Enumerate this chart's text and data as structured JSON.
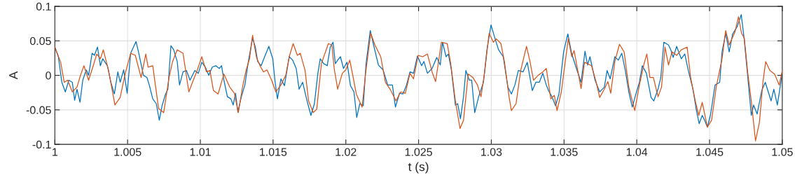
{
  "chart_data": {
    "type": "line",
    "xlabel": "t (s)",
    "ylabel": "A",
    "xlim": [
      1,
      1.05
    ],
    "xticks": [
      1,
      1.005,
      1.01,
      1.015,
      1.02,
      1.025,
      1.03,
      1.035,
      1.04,
      1.045,
      1.05
    ],
    "ylim": [
      -0.1,
      0.1
    ],
    "yticks": [
      -0.1,
      -0.05,
      0,
      0.05,
      0.1
    ],
    "grid": true,
    "line_style": "solid",
    "series": [
      {
        "color": "#0072bd",
        "x": [
          1.0,
          1.00024,
          1.00048,
          1.00072,
          1.00096,
          1.0012,
          1.00136,
          1.00152,
          1.00173,
          1.00192,
          1.00216,
          1.00232,
          1.00256,
          1.00272,
          1.00293,
          1.00313,
          1.00329,
          1.00361,
          1.00385,
          1.00409,
          1.00433,
          1.00449,
          1.00473,
          1.00497,
          1.00521,
          1.00558,
          1.00577,
          1.00609,
          1.00633,
          1.00649,
          1.00673,
          1.00697,
          1.00718,
          1.00737,
          1.00761,
          1.00777,
          1.00798,
          1.00817,
          1.00841,
          1.00857,
          1.00881,
          1.00905,
          1.00929,
          1.00962,
          1.00986,
          1.0101,
          1.01034,
          1.01058,
          1.01082,
          1.01106,
          1.0113,
          1.01146,
          1.01162,
          1.01186,
          1.0121,
          1.01226,
          1.01242,
          1.01258,
          1.01282,
          1.01306,
          1.0133,
          1.01359,
          1.01378,
          1.01394,
          1.01418,
          1.01442,
          1.01471,
          1.01498,
          1.01514,
          1.0153,
          1.01554,
          1.01578,
          1.01611,
          1.01635,
          1.01659,
          1.01679,
          1.01703,
          1.01736,
          1.0176,
          1.01784,
          1.01808,
          1.01824,
          1.01848,
          1.01872,
          1.01893,
          1.01912,
          1.01928,
          1.01944,
          1.01963,
          1.01984,
          1.02008,
          1.02032,
          1.02056,
          1.02075,
          1.02096,
          1.0212,
          1.02139,
          1.02168,
          1.02192,
          1.02224,
          1.02256,
          1.02288,
          1.0232,
          1.02341,
          1.02369,
          1.02393,
          1.02417,
          1.02441,
          1.02465,
          1.02492,
          1.02521,
          1.02537,
          1.02561,
          1.02593,
          1.02625,
          1.02649,
          1.02665,
          1.02689,
          1.02705,
          1.02726,
          1.02753,
          1.02769,
          1.02788,
          1.02809,
          1.02825,
          1.02849,
          1.02865,
          1.02886,
          1.02913,
          1.02946,
          1.0297,
          1.02998,
          1.03026,
          1.0305,
          1.03082,
          1.03114,
          1.03138,
          1.03162,
          1.03186,
          1.03218,
          1.03247,
          1.03282,
          1.03306,
          1.0333,
          1.03354,
          1.03378,
          1.03393,
          1.03417,
          1.03441,
          1.03465,
          1.03497,
          1.03526,
          1.03553,
          1.03585,
          1.03617,
          1.03644,
          1.03662,
          1.03678,
          1.03713,
          1.03745,
          1.03777,
          1.03796,
          1.03817,
          1.03849,
          1.03873,
          1.03897,
          1.03921,
          1.03945,
          1.03969,
          1.03994,
          1.04018,
          1.04038,
          1.04066,
          1.04098,
          1.04117,
          1.04146,
          1.04165,
          1.04186,
          1.04218,
          1.04234,
          1.0425,
          1.04274,
          1.04306,
          1.0433,
          1.04354,
          1.04386,
          1.0441,
          1.04429,
          1.0445,
          1.04466,
          1.04485,
          1.04506,
          1.04538,
          1.0457,
          1.04586,
          1.04611,
          1.04635,
          1.04659,
          1.04691,
          1.04718,
          1.04739,
          1.04763,
          1.04787,
          1.04803,
          1.04827,
          1.04859,
          1.04883,
          1.04923,
          1.04942,
          1.04966,
          1.05
        ],
        "values": [
          0.041,
          0.027,
          -0.01,
          -0.024,
          -0.007,
          -0.01,
          -0.036,
          -0.02,
          -0.039,
          -0.007,
          0.008,
          0.0,
          0.032,
          0.029,
          0.041,
          0.014,
          0.024,
          0.014,
          -0.01,
          -0.027,
          0.005,
          -0.01,
          0.008,
          -0.026,
          0.032,
          0.049,
          0.032,
          0.0,
          -0.003,
          -0.014,
          -0.034,
          -0.041,
          -0.065,
          -0.044,
          -0.027,
          -0.02,
          0.043,
          0.037,
          0.02,
          -0.014,
          0.005,
          0.007,
          -0.007,
          0.007,
          0.003,
          0.019,
          0.012,
          0.0,
          0.012,
          0.014,
          0.01,
          0.014,
          -0.007,
          -0.031,
          -0.034,
          -0.043,
          -0.026,
          -0.053,
          -0.031,
          -0.014,
          0.02,
          0.054,
          0.041,
          0.02,
          0.014,
          0.027,
          0.042,
          0.024,
          -0.01,
          -0.034,
          -0.005,
          -0.015,
          0.027,
          0.022,
          0.01,
          -0.02,
          -0.01,
          -0.039,
          -0.058,
          -0.041,
          0.003,
          0.024,
          0.017,
          0.014,
          0.041,
          0.048,
          0.017,
          0.022,
          0.027,
          0.01,
          0.019,
          -0.015,
          -0.024,
          -0.061,
          -0.041,
          -0.044,
          0.017,
          0.065,
          0.043,
          0.015,
          0.008,
          -0.014,
          -0.014,
          -0.046,
          -0.026,
          -0.027,
          -0.014,
          0.005,
          0.003,
          0.028,
          0.014,
          0.02,
          0.003,
          0.01,
          0.026,
          0.015,
          0.048,
          0.027,
          0.031,
          0.007,
          -0.043,
          -0.041,
          -0.063,
          -0.031,
          0.007,
          -0.007,
          -0.007,
          -0.054,
          -0.031,
          -0.01,
          0.037,
          0.073,
          0.053,
          0.037,
          0.027,
          -0.017,
          -0.027,
          -0.014,
          0.007,
          0.005,
          0.019,
          -0.022,
          -0.01,
          -0.01,
          0.003,
          -0.014,
          -0.022,
          -0.031,
          -0.044,
          -0.027,
          0.034,
          0.06,
          0.031,
          0.01,
          -0.01,
          0.035,
          0.015,
          0.027,
          -0.007,
          -0.024,
          -0.017,
          0.007,
          -0.005,
          0.027,
          0.022,
          0.032,
          0.007,
          -0.024,
          -0.046,
          -0.027,
          -0.01,
          0.014,
          0.003,
          -0.032,
          -0.037,
          -0.02,
          -0.003,
          0.048,
          0.044,
          0.037,
          0.026,
          0.042,
          0.024,
          0.031,
          0.007,
          -0.02,
          -0.051,
          -0.07,
          -0.058,
          -0.065,
          -0.075,
          -0.058,
          -0.014,
          -0.01,
          0.034,
          0.061,
          0.034,
          0.06,
          0.071,
          0.088,
          0.051,
          -0.003,
          -0.058,
          -0.043,
          -0.056,
          -0.022,
          -0.01,
          -0.037,
          -0.02,
          -0.043,
          0.003
        ]
      },
      {
        "color": "#d95319",
        "x": [
          1.0,
          1.0004,
          1.00064,
          1.00088,
          1.0012,
          1.00152,
          1.00176,
          1.002,
          1.00232,
          1.00264,
          1.00288,
          1.00313,
          1.00333,
          1.00369,
          1.00393,
          1.00413,
          1.00449,
          1.00484,
          1.00521,
          1.00553,
          1.00593,
          1.00625,
          1.00641,
          1.00673,
          1.00713,
          1.00748,
          1.00785,
          1.00809,
          1.00841,
          1.00881,
          1.00921,
          1.00946,
          1.00978,
          1.0101,
          1.01042,
          1.01066,
          1.0109,
          1.01122,
          1.01162,
          1.01202,
          1.01234,
          1.01261,
          1.0129,
          1.01314,
          1.01338,
          1.01359,
          1.01386,
          1.0141,
          1.01434,
          1.01458,
          1.0149,
          1.01519,
          1.01554,
          1.01587,
          1.01611,
          1.01638,
          1.01667,
          1.01687,
          1.0172,
          1.01744,
          1.01776,
          1.018,
          1.01832,
          1.0188,
          1.01904,
          1.0192,
          1.01944,
          1.01976,
          1.02,
          1.02027,
          1.02048,
          1.02072,
          1.02112,
          1.02136,
          1.02171,
          1.022,
          1.0224,
          1.02272,
          1.02304,
          1.02345,
          1.02377,
          1.02409,
          1.02441,
          1.02465,
          1.02497,
          1.02529,
          1.02561,
          1.02593,
          1.02617,
          1.02657,
          1.02697,
          1.02721,
          1.02753,
          1.02785,
          1.02809,
          1.02841,
          1.02873,
          1.02905,
          1.02929,
          1.02953,
          1.02985,
          1.03014,
          1.03034,
          1.03066,
          1.0309,
          1.03122,
          1.03138,
          1.0317,
          1.03202,
          1.03242,
          1.03266,
          1.0329,
          1.03322,
          1.03354,
          1.03378,
          1.03409,
          1.03433,
          1.03452,
          1.03481,
          1.03529,
          1.03553,
          1.03569,
          1.03617,
          1.03641,
          1.03689,
          1.03721,
          1.03745,
          1.03777,
          1.03801,
          1.03821,
          1.03849,
          1.03881,
          1.03913,
          1.03945,
          1.03986,
          1.04018,
          1.0405,
          1.04069,
          1.0409,
          1.04114,
          1.04146,
          1.0417,
          1.04194,
          1.04218,
          1.04242,
          1.04274,
          1.04306,
          1.04346,
          1.0437,
          1.04402,
          1.04426,
          1.0445,
          1.04485,
          1.04514,
          1.04546,
          1.04586,
          1.04611,
          1.04635,
          1.04675,
          1.04699,
          1.0472,
          1.04739,
          1.04763,
          1.04787,
          1.04816,
          1.04843,
          1.04867,
          1.04886,
          1.04915,
          1.04947,
          1.04979,
          1.05
        ],
        "values": [
          0.041,
          0.019,
          -0.01,
          -0.007,
          -0.024,
          -0.017,
          0.0,
          0.014,
          -0.007,
          0.014,
          0.031,
          0.024,
          0.037,
          0.007,
          -0.02,
          -0.043,
          -0.032,
          0.003,
          0.032,
          0.029,
          -0.003,
          0.031,
          0.012,
          0.014,
          -0.048,
          -0.054,
          -0.003,
          0.02,
          0.037,
          0.032,
          -0.024,
          -0.01,
          0.007,
          0.027,
          0.005,
          0.007,
          -0.022,
          -0.027,
          0.002,
          -0.017,
          -0.026,
          -0.054,
          -0.017,
          0.007,
          0.024,
          0.058,
          0.026,
          0.014,
          0.005,
          0.008,
          -0.007,
          -0.024,
          -0.014,
          0.0,
          0.027,
          0.046,
          0.029,
          0.032,
          0.007,
          -0.037,
          -0.054,
          -0.049,
          0.017,
          0.046,
          0.044,
          0.01,
          -0.02,
          0.003,
          0.008,
          0.022,
          0.0,
          -0.027,
          -0.046,
          0.003,
          0.061,
          0.044,
          0.027,
          -0.01,
          -0.02,
          -0.037,
          -0.024,
          -0.026,
          0.003,
          -0.005,
          0.029,
          0.027,
          0.031,
          0.005,
          -0.009,
          0.048,
          0.046,
          0.017,
          -0.037,
          -0.077,
          -0.065,
          0.002,
          -0.003,
          -0.014,
          -0.031,
          0.003,
          0.061,
          0.048,
          0.053,
          0.046,
          0.02,
          -0.031,
          -0.051,
          -0.041,
          0.007,
          0.042,
          0.02,
          -0.007,
          0.0,
          0.005,
          0.01,
          -0.034,
          -0.029,
          -0.051,
          -0.024,
          0.053,
          0.027,
          0.036,
          -0.019,
          0.019,
          0.014,
          -0.01,
          -0.032,
          -0.02,
          -0.009,
          -0.026,
          0.02,
          0.045,
          0.034,
          -0.017,
          -0.051,
          -0.014,
          0.017,
          0.031,
          -0.003,
          -0.003,
          -0.031,
          -0.017,
          0.041,
          0.015,
          0.034,
          0.029,
          0.037,
          0.041,
          -0.003,
          -0.037,
          -0.058,
          -0.039,
          -0.075,
          -0.065,
          -0.017,
          0.024,
          0.065,
          0.044,
          0.063,
          0.085,
          0.061,
          0.054,
          0.003,
          -0.037,
          -0.095,
          -0.068,
          -0.01,
          0.02,
          0.007,
          0.002,
          -0.014,
          0.007
        ]
      }
    ]
  }
}
